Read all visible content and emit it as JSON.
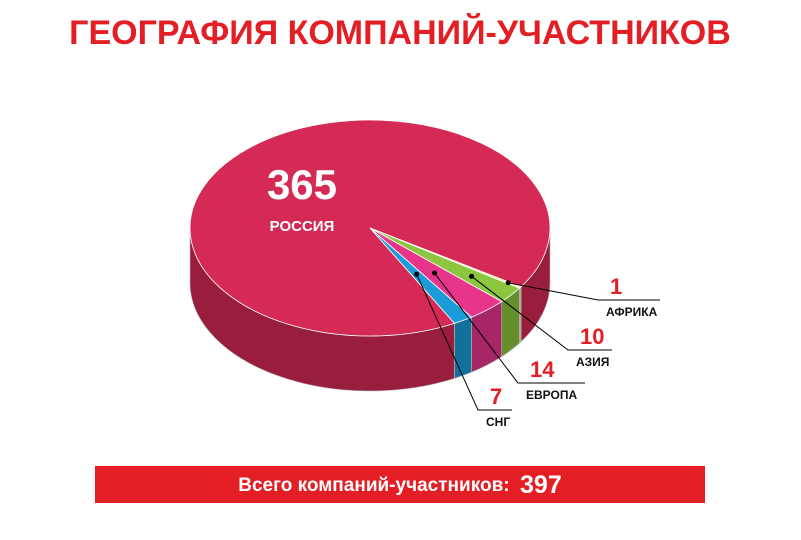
{
  "chart_data": {
    "type": "pie",
    "title": "ГЕОГРАФИЯ КОМПАНИЙ-УЧАСТНИКОВ",
    "categories": [
      "РОССИЯ",
      "АФРИКА",
      "АЗИЯ",
      "ЕВРОПА",
      "СНГ"
    ],
    "values": [
      365,
      1,
      10,
      14,
      7
    ],
    "colors": [
      "#d42a55",
      "#f3ef9c",
      "#8cc63f",
      "#e8358c",
      "#1b9bd7"
    ],
    "total_label": "Всего компаний-участников:",
    "total": 397
  }
}
